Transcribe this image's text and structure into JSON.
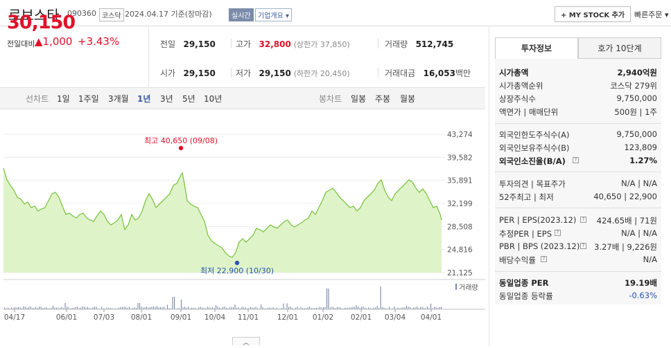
{
  "header": {
    "name": "로보스타",
    "code": "090360",
    "market": "코스닥",
    "date": "2024.04.17 기준(장마감)",
    "realtime": "실시간",
    "company_overview": "기업개요 ▾",
    "my_stock": "+ MY STOCK 추가",
    "quick_order": "빠른주문 ▾"
  },
  "price": {
    "current": "30,150",
    "change_label": "전일대비",
    "change": "▲1,000",
    "change_pct": "+3.43%"
  },
  "quote": {
    "prev_label": "전일",
    "prev": "29,150",
    "open_label": "시가",
    "open": "29,150",
    "high_label": "고가",
    "high": "32,800",
    "upper_limit": "(상한가 37,850)",
    "low_label": "저가",
    "low": "29,150",
    "lower_limit": "(하한가 20,450)",
    "volume_label": "거래량",
    "volume": "512,745",
    "amount_label": "거래대금",
    "amount": "16,053",
    "amount_unit": "백만"
  },
  "periods": {
    "line_label": "선차트",
    "line_items": [
      "1일",
      "1주일",
      "3개월",
      "1년",
      "3년",
      "5년",
      "10년"
    ],
    "active": "1년",
    "candle_label": "봉차트",
    "candle_items": [
      "일봉",
      "주봉",
      "월봉"
    ]
  },
  "chart_data": {
    "type": "area",
    "y_ticks": [
      "43,274",
      "39,582",
      "35,891",
      "32,199",
      "28,508",
      "24,816",
      "21,125"
    ],
    "ylim": [
      21125,
      43274
    ],
    "x_labels": [
      "04/17",
      "06/01",
      "07/03",
      "08/01",
      "09/01",
      "10/04",
      "11/01",
      "12/01",
      "01/02",
      "02/01",
      "03/04",
      "04/01"
    ],
    "high_annotation": "최고 40,650 (09/08)",
    "low_annotation": "최저 22,900 (10/30)",
    "volume_label": "거래량",
    "color_line": "#7cc544",
    "color_fill": "#dff3c8"
  },
  "tabs": {
    "invest_info": "투자정보",
    "orderbook": "호가 10단계"
  },
  "info": {
    "market_cap_label": "시가총액",
    "market_cap": "2,940억원",
    "market_cap_rank_label": "시가총액순위",
    "market_cap_rank": "코스닥 279위",
    "shares_label": "상장주식수",
    "shares": "9,750,000",
    "par_label": "액면가 | 매매단위",
    "par": "500원 | 1주",
    "foreign_limit_label": "외국인한도주식수(A)",
    "foreign_limit": "9,750,000",
    "foreign_hold_label": "외국인보유주식수(B)",
    "foreign_hold": "123,809",
    "foreign_ratio_label": "외국인소진율(B/A)",
    "foreign_ratio": "1.27%",
    "opinion_label": "투자의견 | 목표주가",
    "opinion": "N/A | N/A",
    "week52_label": "52주최고 | 최저",
    "week52": "40,650 | 22,900",
    "per_label": "PER | EPS(2023.12)",
    "per": "424.65배 | 71원",
    "est_per_label": "추정PER | EPS",
    "est_per": "N/A | N/A",
    "pbr_label": "PBR | BPS (2023.12)",
    "pbr": "3.27배 | 9,226원",
    "dividend_label": "배당수익률",
    "dividend": "N/A",
    "industry_per_label": "동일업종 PER",
    "industry_per": "19.19배",
    "industry_chg_label": "동일업종 등락률",
    "industry_chg": "-0.63%"
  },
  "collapse": "︿"
}
